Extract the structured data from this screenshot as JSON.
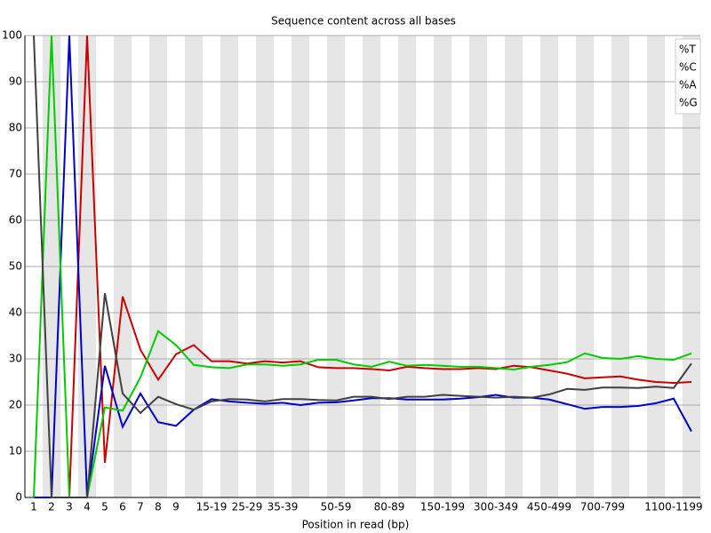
{
  "chart_data": {
    "type": "line",
    "title": "Sequence content across all bases",
    "x_label": "Position in read (bp)",
    "categories": [
      "1",
      "2",
      "3",
      "4",
      "5",
      "6",
      "7",
      "8",
      "9",
      null,
      "15-19",
      null,
      "25-29",
      null,
      "35-39",
      null,
      null,
      "50-59",
      null,
      null,
      "80-89",
      null,
      null,
      "150-199",
      null,
      null,
      "300-349",
      null,
      null,
      "450-499",
      null,
      null,
      "700-799",
      null,
      null,
      null,
      "1100-1199",
      null
    ],
    "ylim": [
      0,
      100
    ],
    "yticks": [
      0,
      10,
      20,
      30,
      40,
      50,
      60,
      70,
      80,
      90,
      100
    ],
    "grid": true,
    "legend": "top-right",
    "series": [
      {
        "name": "%T",
        "color": "#cc0000",
        "values": [
          0,
          0,
          0,
          100,
          7.5,
          43.5,
          32,
          25.5,
          31,
          33,
          29.5,
          29.5,
          29,
          29.5,
          29.2,
          29.5,
          28.2,
          28,
          28,
          27.8,
          27.5,
          28.3,
          28,
          27.8,
          27.8,
          28,
          27.8,
          28.5,
          28.2,
          27.5,
          26.8,
          25.8,
          26,
          26.2,
          25.5,
          25,
          24.8,
          25
        ]
      },
      {
        "name": "%C",
        "color": "#0000cc",
        "values": [
          0,
          0,
          100,
          0,
          28.5,
          15.3,
          22.5,
          16.3,
          15.5,
          19,
          21.3,
          20.8,
          20.5,
          20.3,
          20.5,
          20,
          20.5,
          20.6,
          21,
          21.5,
          21.5,
          21.2,
          21.2,
          21.2,
          21.4,
          21.7,
          22.2,
          21.6,
          21.6,
          21.2,
          20.2,
          19.2,
          19.6,
          19.6,
          19.8,
          20.4,
          21.4,
          14.3
        ]
      },
      {
        "name": "%A",
        "color": "#00cc00",
        "values": [
          0,
          100,
          0,
          0,
          19.5,
          18.8,
          26,
          36,
          33,
          28.7,
          28.2,
          28,
          28.8,
          28.8,
          28.5,
          28.8,
          29.8,
          29.8,
          28.8,
          28.3,
          29.4,
          28.5,
          28.7,
          28.5,
          28.3,
          28.3,
          28,
          27.7,
          28.3,
          28.7,
          29.3,
          31.2,
          30.2,
          30,
          30.6,
          30,
          29.8,
          31.2
        ]
      },
      {
        "name": "%G",
        "color": "#404040",
        "values": [
          100,
          0,
          0,
          0,
          44.2,
          22.5,
          18.3,
          21.8,
          20.2,
          19,
          20.8,
          21.3,
          21.2,
          20.8,
          21.3,
          21.3,
          21.1,
          21,
          21.8,
          21.8,
          21.3,
          21.8,
          21.8,
          22.2,
          22,
          21.8,
          21.6,
          21.8,
          21.6,
          22.3,
          23.5,
          23.3,
          23.8,
          23.8,
          23.7,
          24,
          23.7,
          29
        ]
      }
    ]
  }
}
